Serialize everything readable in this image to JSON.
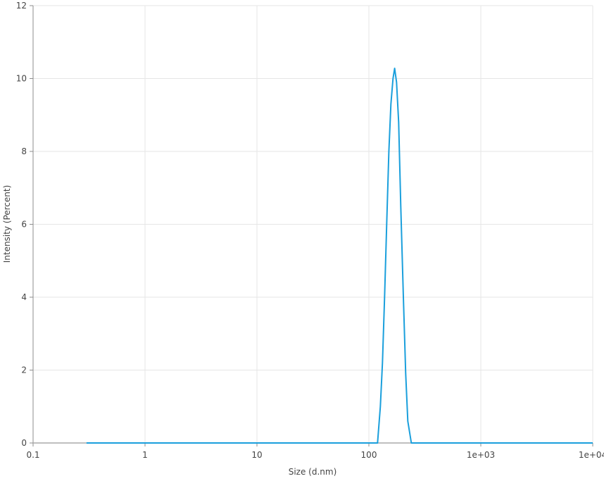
{
  "chart_data": {
    "type": "line",
    "title": "",
    "xlabel": "Size (d.nm)",
    "ylabel": "Intensity (Percent)",
    "x_scale": "log",
    "xlim": [
      0.1,
      10000
    ],
    "ylim": [
      0,
      12
    ],
    "x_ticks": [
      0.1,
      1,
      10,
      100,
      1000,
      10000
    ],
    "x_tick_labels": [
      "0.1",
      "1",
      "10",
      "100",
      "1e+03",
      "1e+04"
    ],
    "y_ticks": [
      0,
      2,
      4,
      6,
      8,
      10,
      12
    ],
    "y_tick_labels": [
      "0",
      "2",
      "4",
      "6",
      "8",
      "10",
      "12"
    ],
    "grid": true,
    "legend": "none",
    "colors": {
      "line": "#1a9fdc",
      "grid": "#e6e6e6",
      "axis": "#8c8c8c"
    },
    "series": [
      {
        "x": [
          0.3,
          119.5,
          126.6,
          132.3,
          138.1,
          144.3,
          150.8,
          157.4,
          164.4,
          170.0,
          176.7,
          184.6,
          192.8,
          203.4,
          213.4,
          222.8,
          239.6,
          10000
        ],
        "y": [
          0,
          0,
          1.0,
          2.2,
          4.0,
          6.0,
          8.0,
          9.3,
          10.0,
          10.28,
          9.9,
          8.8,
          6.5,
          4.0,
          1.9,
          0.6,
          0,
          0
        ]
      }
    ]
  }
}
